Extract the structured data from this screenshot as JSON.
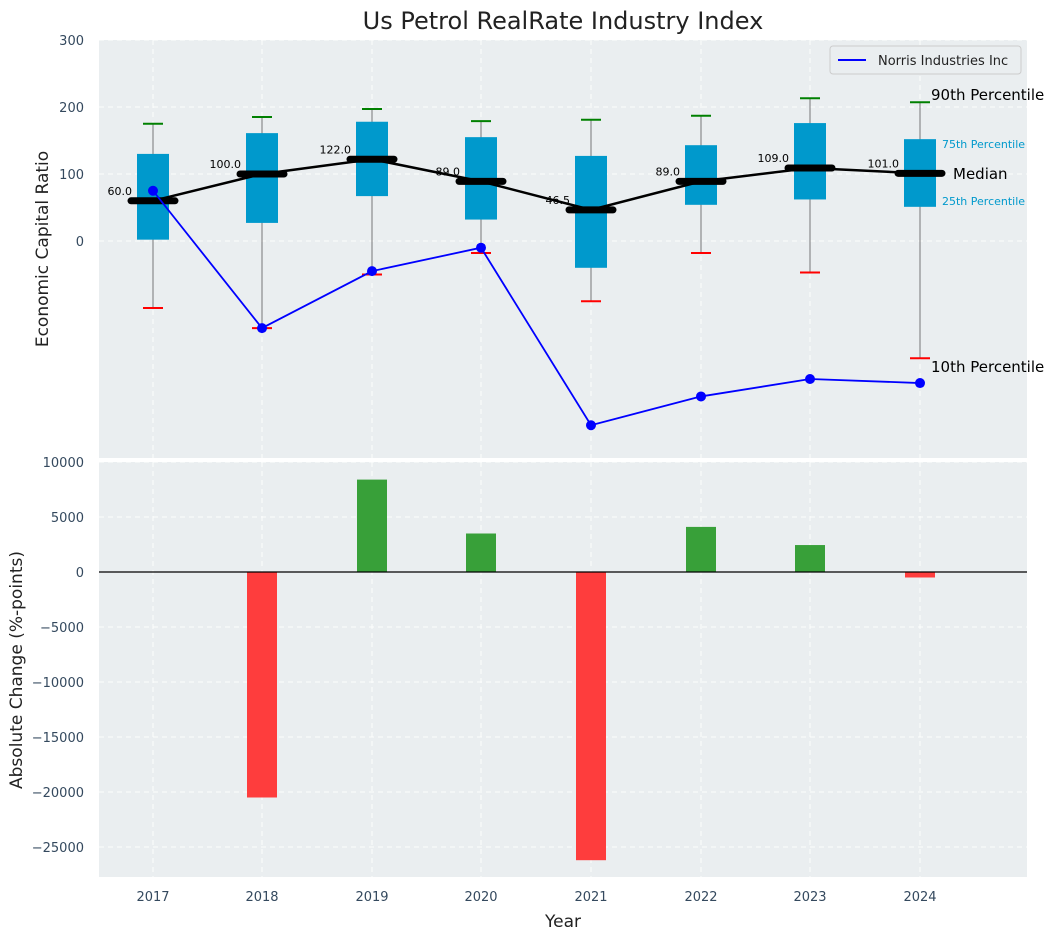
{
  "chart_data": [
    {
      "type": "box",
      "title": "Us Petrol RealRate Industry Index",
      "ylabel": "Economic Capital Ratio",
      "ylim": [
        -320,
        300
      ],
      "yticks": [
        0,
        100,
        200,
        300
      ],
      "categories": [
        "2017",
        "2018",
        "2019",
        "2020",
        "2021",
        "2022",
        "2023",
        "2024"
      ],
      "p10": [
        -100,
        -130,
        -50,
        -18,
        -90,
        -18,
        -47,
        -175
      ],
      "p25": [
        2,
        27,
        67,
        32,
        -40,
        54,
        62,
        51
      ],
      "median": [
        60.0,
        100.0,
        122.0,
        89.0,
        46.5,
        89.0,
        109.0,
        101.0
      ],
      "p75": [
        130,
        161,
        178,
        155,
        127,
        143,
        176,
        152
      ],
      "p90": [
        175,
        185,
        197,
        179,
        181,
        187,
        213,
        207
      ],
      "median_labels": [
        "60.0",
        "100.0",
        "122.0",
        "89.0",
        "46.5",
        "89.0",
        "109.0",
        "101.0"
      ],
      "series": [
        {
          "name": "Norris Industries Inc",
          "color": "#0000ff",
          "values": [
            75,
            -130,
            -45,
            -10,
            -275,
            -232,
            -206,
            -212
          ]
        }
      ],
      "annotations": {
        "p90": "90th Percentile",
        "p75": "75th Percentile",
        "median": "Median",
        "p25": "25th Percentile",
        "p10": "10th Percentile"
      },
      "colors": {
        "box": "#0099cc",
        "p90_cap": "#008000",
        "p10_cap": "#ff0000",
        "median_line": "#000000"
      }
    },
    {
      "type": "bar",
      "ylabel": "Absolute Change (%-points)",
      "xlabel": "Year",
      "ylim": [
        -28000,
        10000
      ],
      "yticks": [
        10000,
        5000,
        0,
        -5000,
        -10000,
        -15000,
        -20000,
        -25000
      ],
      "categories": [
        "2017",
        "2018",
        "2019",
        "2020",
        "2021",
        "2022",
        "2023",
        "2024"
      ],
      "values": [
        0,
        -20500,
        8400,
        3500,
        -26200,
        4100,
        2450,
        -500
      ],
      "colors": {
        "positive": "#2e9b2e",
        "negative": "#ff3333"
      }
    }
  ]
}
